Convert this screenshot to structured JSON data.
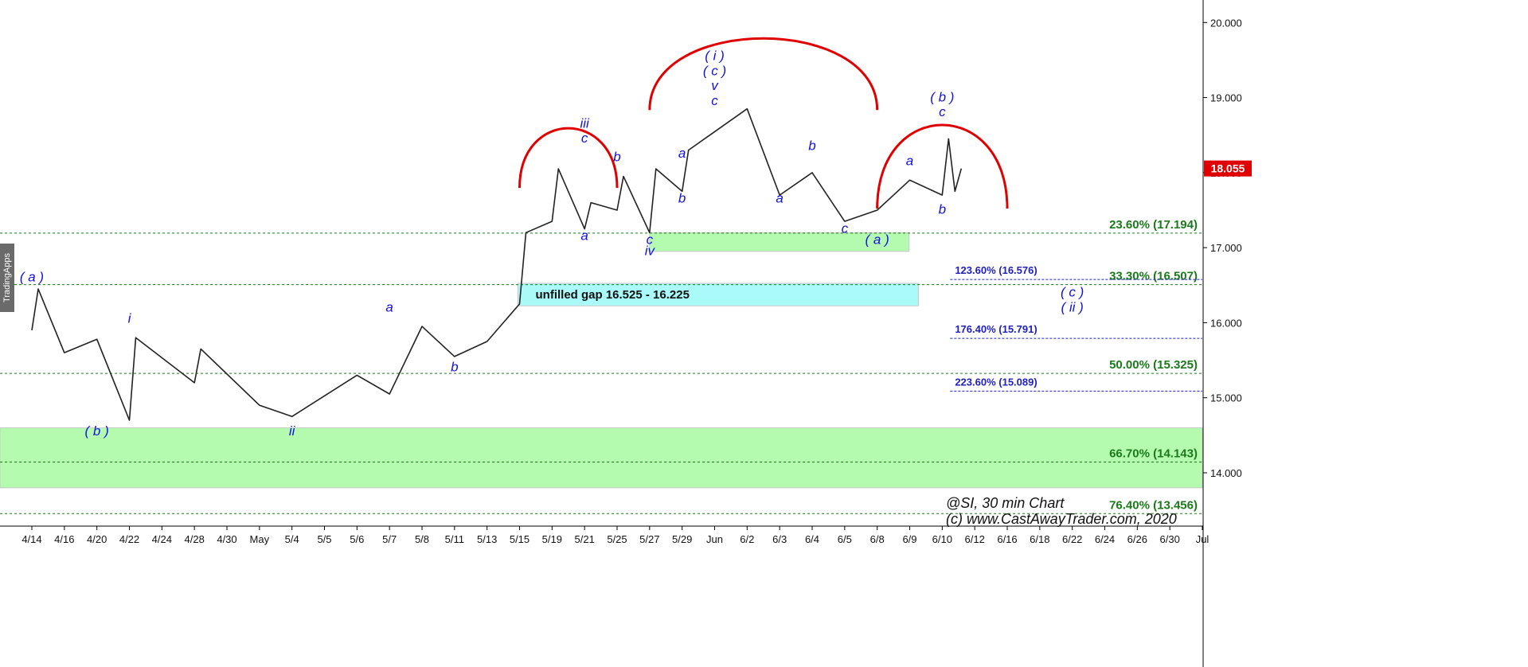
{
  "brand_tab": "TradingApps",
  "chart_data": {
    "type": "line",
    "instrument": "@SI",
    "interval": "30 min Chart",
    "credit": "(c) www.CastAwayTrader.com, 2020",
    "ylim": [
      13.3,
      20.3
    ],
    "y_ticks": [
      14.0,
      15.0,
      16.0,
      17.0,
      18.0,
      19.0,
      20.0
    ],
    "y_tick_labels": [
      "14.000",
      "15.000",
      "16.000",
      "17.000",
      "18.000",
      "19.000",
      "20.000"
    ],
    "x_labels": [
      "4/14",
      "4/16",
      "4/20",
      "4/22",
      "4/24",
      "4/28",
      "4/30",
      "May",
      "5/4",
      "5/5",
      "5/6",
      "5/7",
      "5/8",
      "5/11",
      "5/13",
      "5/15",
      "5/19",
      "5/21",
      "5/25",
      "5/27",
      "5/29",
      "Jun",
      "6/2",
      "6/3",
      "6/4",
      "6/5",
      "6/8",
      "6/9",
      "6/10",
      "6/12",
      "6/16",
      "6/18",
      "6/22",
      "6/24",
      "6/26",
      "6/30",
      "Jul"
    ],
    "last_price": "18.055",
    "series": [
      {
        "values": [
          [
            "4/14",
            15.9
          ],
          [
            "4/14",
            16.45
          ],
          [
            "4/16",
            15.6
          ],
          [
            "4/20",
            15.78
          ],
          [
            "4/22",
            14.7
          ],
          [
            "4/22",
            15.8
          ],
          [
            "4/28",
            15.2
          ],
          [
            "4/28",
            15.65
          ],
          [
            "May",
            14.9
          ],
          [
            "5/4",
            14.75
          ],
          [
            "5/6",
            15.3
          ],
          [
            "5/7",
            15.05
          ],
          [
            "5/8",
            15.95
          ],
          [
            "5/11",
            15.55
          ],
          [
            "5/13",
            15.75
          ],
          [
            "5/15",
            16.25
          ],
          [
            "5/15",
            17.2
          ],
          [
            "5/19",
            17.35
          ],
          [
            "5/19",
            18.05
          ],
          [
            "5/21",
            17.25
          ],
          [
            "5/21",
            17.6
          ],
          [
            "5/25",
            17.5
          ],
          [
            "5/25",
            17.95
          ],
          [
            "5/27",
            17.2
          ],
          [
            "5/27",
            18.05
          ],
          [
            "5/29",
            17.75
          ],
          [
            "5/29",
            18.3
          ],
          [
            "6/2",
            18.85
          ],
          [
            "6/3",
            17.7
          ],
          [
            "6/4",
            18.0
          ],
          [
            "6/5",
            17.35
          ],
          [
            "6/8",
            17.5
          ],
          [
            "6/9",
            17.9
          ],
          [
            "6/10",
            17.7
          ],
          [
            "6/10",
            18.45
          ],
          [
            "6/10",
            17.75
          ],
          [
            "6/10",
            18.055
          ]
        ]
      }
    ],
    "fib_levels": [
      {
        "label": "23.60% (17.194)",
        "value": 17.194,
        "color": "#1a7a1a"
      },
      {
        "label": "33.30% (16.507)",
        "value": 16.507,
        "color": "#1a7a1a"
      },
      {
        "label": "50.00% (15.325)",
        "value": 15.325,
        "color": "#1a7a1a"
      },
      {
        "label": "66.70% (14.143)",
        "value": 14.143,
        "color": "#1a7a1a"
      },
      {
        "label": "76.40% (13.456)",
        "value": 13.456,
        "color": "#1a7a1a"
      }
    ],
    "extension_levels": [
      {
        "label": "123.60% (16.576)",
        "value": 16.576,
        "color": "#2020c0"
      },
      {
        "label": "176.40% (15.791)",
        "value": 15.791,
        "color": "#2020c0"
      },
      {
        "label": "223.60% (15.089)",
        "value": 15.089,
        "color": "#2020c0"
      }
    ],
    "zones": [
      {
        "label": "",
        "from": 13.8,
        "to": 14.6,
        "color": "#b4fbb0"
      },
      {
        "label": "",
        "from": 16.95,
        "to": 17.2,
        "color": "#b4fbb0"
      },
      {
        "label": "unfilled gap 16.525 - 16.225",
        "from": 16.225,
        "from_label": "16.225",
        "to": 16.525,
        "color": "#aafafa"
      }
    ],
    "wave_labels": [
      {
        "text": "( a )",
        "x": "4/14",
        "y": 16.55
      },
      {
        "text": "( b )",
        "x": "4/20",
        "y": 14.5
      },
      {
        "text": "i",
        "x": "4/22",
        "y": 16.0
      },
      {
        "text": "ii",
        "x": "5/4",
        "y": 14.5
      },
      {
        "text": "a",
        "x": "5/7",
        "y": 16.15
      },
      {
        "text": "b",
        "x": "5/11",
        "y": 15.35
      },
      {
        "text": "iii",
        "x": "5/21",
        "y": 18.6
      },
      {
        "text": "c",
        "x": "5/21",
        "y": 18.4
      },
      {
        "text": "a",
        "x": "5/21",
        "y": 17.1
      },
      {
        "text": "b",
        "x": "5/25",
        "y": 18.15
      },
      {
        "text": "c",
        "x": "5/27",
        "y": 17.05
      },
      {
        "text": "iv",
        "x": "5/27",
        "y": 16.9
      },
      {
        "text": "a",
        "x": "5/29",
        "y": 18.2
      },
      {
        "text": "b",
        "x": "5/29",
        "y": 17.6
      },
      {
        "text": "( i )",
        "x": "Jun",
        "y": 19.5
      },
      {
        "text": "( c )",
        "x": "Jun",
        "y": 19.3
      },
      {
        "text": "v",
        "x": "Jun",
        "y": 19.1
      },
      {
        "text": "c",
        "x": "Jun",
        "y": 18.9
      },
      {
        "text": "a",
        "x": "6/3",
        "y": 17.6
      },
      {
        "text": "b",
        "x": "6/4",
        "y": 18.3
      },
      {
        "text": "c",
        "x": "6/5",
        "y": 17.2
      },
      {
        "text": "( a )",
        "x": "6/8",
        "y": 17.05
      },
      {
        "text": "a",
        "x": "6/9",
        "y": 18.1
      },
      {
        "text": "b",
        "x": "6/10",
        "y": 17.45
      },
      {
        "text": "( b )",
        "x": "6/10",
        "y": 18.95
      },
      {
        "text": "c",
        "x": "6/10",
        "y": 18.75
      },
      {
        "text": "( c )",
        "x": "6/22",
        "y": 16.35
      },
      {
        "text": "( ii )",
        "x": "6/22",
        "y": 16.15
      }
    ],
    "arcs": [
      {
        "color": "#e00000",
        "from": "5/15",
        "to": "5/25"
      },
      {
        "color": "#e00000",
        "from": "5/27",
        "to": "6/8"
      },
      {
        "color": "#e00000",
        "from": "6/8",
        "to": "6/16"
      }
    ],
    "grid": false
  }
}
